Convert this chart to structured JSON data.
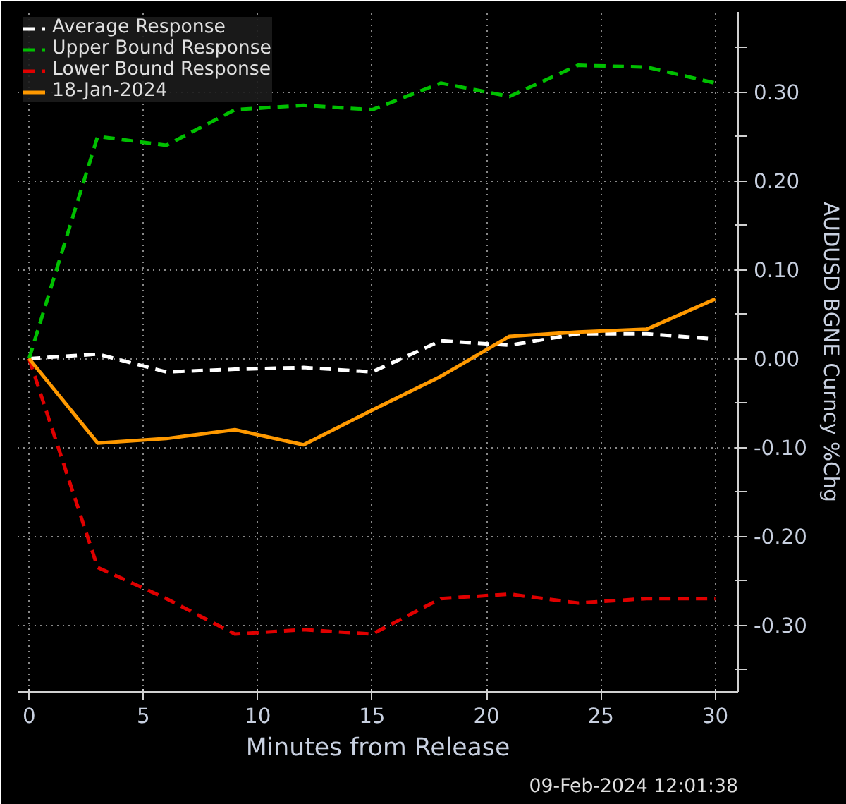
{
  "chart_data": {
    "type": "line",
    "xlabel": "Minutes from Release",
    "ylabel": "AUDUSD BGNE Curncy %Chg",
    "x": [
      0,
      3,
      6,
      9,
      12,
      15,
      18,
      21,
      24,
      27,
      30
    ],
    "series": [
      {
        "name": "Average Response",
        "color": "#ffffff",
        "line_style": "dashed",
        "values": [
          0,
          0.005,
          -0.015,
          -0.012,
          -0.01,
          -0.015,
          0.02,
          0.015,
          0.028,
          0.028,
          0.022
        ]
      },
      {
        "name": "Upper Bound Response",
        "color": "#00c000",
        "line_style": "dashed",
        "values": [
          0,
          0.25,
          0.24,
          0.28,
          0.285,
          0.28,
          0.31,
          0.295,
          0.33,
          0.328,
          0.31
        ]
      },
      {
        "name": "Lower Bound Response",
        "color": "#e00000",
        "line_style": "dashed",
        "values": [
          0,
          -0.235,
          -0.27,
          -0.31,
          -0.305,
          -0.31,
          -0.27,
          -0.265,
          -0.275,
          -0.27,
          -0.27
        ]
      },
      {
        "name": "18-Jan-2024",
        "color": "#ff9900",
        "line_style": "solid",
        "values": [
          0,
          -0.095,
          -0.09,
          -0.08,
          -0.097,
          -0.058,
          -0.02,
          0.025,
          0.03,
          0.033,
          0.067
        ]
      }
    ],
    "xlim": [
      -0.5,
      31
    ],
    "xticks": [
      0,
      5,
      10,
      15,
      20,
      25,
      30
    ],
    "ylim": [
      -0.375,
      0.39
    ],
    "yticks": [
      {
        "value": -0.35,
        "label": null
      },
      {
        "value": -0.3,
        "label": "-0.30"
      },
      {
        "value": -0.25,
        "label": null
      },
      {
        "value": -0.2,
        "label": "-0.20"
      },
      {
        "value": -0.15,
        "label": null
      },
      {
        "value": -0.1,
        "label": "-0.10"
      },
      {
        "value": -0.05,
        "label": null
      },
      {
        "value": 0,
        "label": "0.00"
      },
      {
        "value": 0.05,
        "label": null
      },
      {
        "value": 0.1,
        "label": "0.10"
      },
      {
        "value": 0.15,
        "label": null
      },
      {
        "value": 0.2,
        "label": "0.20"
      },
      {
        "value": 0.25,
        "label": null
      },
      {
        "value": 0.3,
        "label": "0.30"
      },
      {
        "value": 0.35,
        "label": null
      }
    ],
    "grid": true,
    "legend": "top left",
    "annotations": [
      "09-Feb-2024 12:01:38"
    ]
  }
}
